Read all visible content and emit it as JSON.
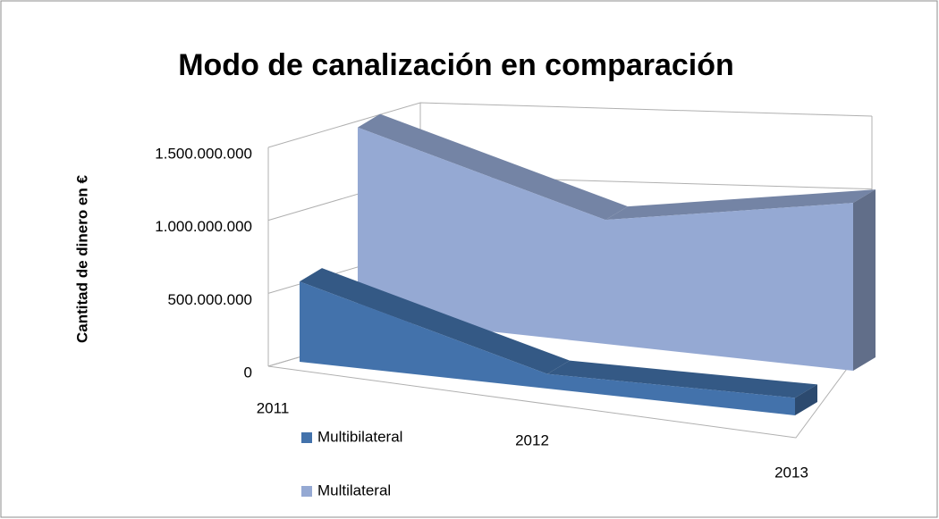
{
  "chart_data": {
    "type": "area3d",
    "title": "Modo de canalización en comparación",
    "y_label": "Cantitad de dinero en €",
    "categories": [
      "2011",
      "2012",
      "2013"
    ],
    "series": [
      {
        "name": "Multibilateral",
        "color": "#4372ab",
        "values": [
          550000000,
          100000000,
          120000000
        ]
      },
      {
        "name": "Multilateral",
        "color": "#95a9d3",
        "values": [
          1300000000,
          850000000,
          1150000000
        ]
      }
    ],
    "ylim": [
      0,
      1500000000
    ],
    "yticks": [
      0,
      {
        "value": 500000000,
        "label": "500.000.000"
      },
      {
        "value": 1000000000,
        "label": "1.000.000.000"
      },
      {
        "value": 1500000000,
        "label": "1.500.000.000"
      }
    ],
    "grid": true
  }
}
